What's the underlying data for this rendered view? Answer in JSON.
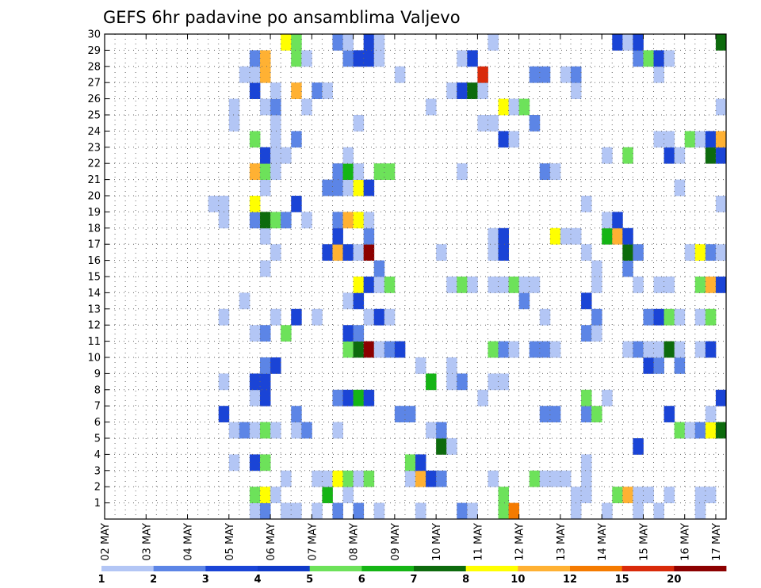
{
  "chart_data": {
    "type": "heatmap",
    "title": "GEFS 6hr padavine po ansamblima Valjevo",
    "xlabel": "",
    "ylabel": "",
    "x_range": [
      0,
      59
    ],
    "y_range": [
      0,
      30
    ],
    "grid": true,
    "x_ticks": [
      "02 MAY",
      "03 MAY",
      "04 MAY",
      "05 MAY",
      "06 MAY",
      "07 MAY",
      "08 MAY",
      "09 MAY",
      "10 MAY",
      "11 MAY",
      "12 MAY",
      "13 MAY",
      "14 MAY",
      "15 MAY",
      "16 MAY",
      "17 MAY"
    ],
    "x_tick_positions": [
      0,
      4,
      8,
      12,
      16,
      20,
      24,
      28,
      32,
      36,
      40,
      44,
      48,
      52,
      56,
      59
    ],
    "y_ticks": [
      "1",
      "2",
      "3",
      "4",
      "5",
      "6",
      "7",
      "8",
      "9",
      "10",
      "11",
      "12",
      "13",
      "14",
      "15",
      "16",
      "17",
      "18",
      "19",
      "20",
      "21",
      "22",
      "23",
      "24",
      "25",
      "26",
      "27",
      "28",
      "29",
      "30"
    ],
    "legend": {
      "position": "bottom",
      "labels": [
        "1",
        "2",
        "3",
        "4",
        "5",
        "6",
        "7",
        "8",
        "10",
        "12",
        "15",
        "20"
      ],
      "colors": [
        "#b3c6f5",
        "#5c85e6",
        "#1a44d6",
        "#0f3ac9",
        "#6de25a",
        "#15b515",
        "#0d6b0d",
        "#ffff00",
        "#ffb133",
        "#f57b00",
        "#d92a0a",
        "#8c0000"
      ]
    },
    "cells": [
      [
        14,
        0,
        1
      ],
      [
        15,
        0,
        1
      ],
      [
        15,
        0,
        2
      ],
      [
        17,
        0,
        1
      ],
      [
        17,
        0,
        1
      ],
      [
        18,
        0,
        1
      ],
      [
        20,
        0,
        1
      ],
      [
        22,
        0,
        2
      ],
      [
        24,
        0,
        2
      ],
      [
        26,
        0,
        1
      ],
      [
        30,
        0,
        1
      ],
      [
        34,
        0,
        2
      ],
      [
        35,
        0,
        1
      ],
      [
        38,
        0,
        5
      ],
      [
        39,
        0,
        12
      ],
      [
        45,
        0,
        1
      ],
      [
        48,
        0,
        1
      ],
      [
        51,
        0,
        1
      ],
      [
        53,
        0,
        1
      ],
      [
        57,
        0,
        1
      ],
      [
        14,
        1,
        5
      ],
      [
        15,
        1,
        8
      ],
      [
        16,
        1,
        1
      ],
      [
        21,
        1,
        6
      ],
      [
        23,
        1,
        1
      ],
      [
        38,
        1,
        5
      ],
      [
        45,
        1,
        1
      ],
      [
        46,
        1,
        1
      ],
      [
        49,
        1,
        5
      ],
      [
        50,
        1,
        10
      ],
      [
        51,
        1,
        1
      ],
      [
        52,
        1,
        1
      ],
      [
        54,
        1,
        1
      ],
      [
        57,
        1,
        1
      ],
      [
        58,
        1,
        1
      ],
      [
        17,
        2,
        1
      ],
      [
        20,
        2,
        1
      ],
      [
        21,
        2,
        1
      ],
      [
        22,
        2,
        8
      ],
      [
        23,
        2,
        5
      ],
      [
        24,
        2,
        1
      ],
      [
        25,
        2,
        5
      ],
      [
        29,
        2,
        1
      ],
      [
        30,
        2,
        10
      ],
      [
        31,
        2,
        3
      ],
      [
        32,
        2,
        2
      ],
      [
        37,
        2,
        1
      ],
      [
        41,
        2,
        5
      ],
      [
        42,
        2,
        1
      ],
      [
        43,
        2,
        1
      ],
      [
        44,
        2,
        1
      ],
      [
        46,
        2,
        1
      ],
      [
        12,
        3,
        1
      ],
      [
        14,
        3,
        3
      ],
      [
        15,
        3,
        5
      ],
      [
        29,
        3,
        5
      ],
      [
        30,
        3,
        3
      ],
      [
        46,
        3,
        1
      ],
      [
        32,
        4,
        7
      ],
      [
        33,
        4,
        1
      ],
      [
        51,
        4,
        3
      ],
      [
        12,
        5,
        1
      ],
      [
        13,
        5,
        2
      ],
      [
        14,
        5,
        1
      ],
      [
        15,
        5,
        5
      ],
      [
        16,
        5,
        1
      ],
      [
        18,
        5,
        1
      ],
      [
        19,
        5,
        2
      ],
      [
        22,
        5,
        1
      ],
      [
        31,
        5,
        1
      ],
      [
        32,
        5,
        2
      ],
      [
        55,
        5,
        5
      ],
      [
        56,
        5,
        1
      ],
      [
        57,
        5,
        2
      ],
      [
        58,
        5,
        8
      ],
      [
        59,
        5,
        7
      ],
      [
        11,
        6,
        3
      ],
      [
        18,
        6,
        2
      ],
      [
        28,
        6,
        2
      ],
      [
        29,
        6,
        2
      ],
      [
        42,
        6,
        2
      ],
      [
        43,
        6,
        2
      ],
      [
        46,
        6,
        2
      ],
      [
        47,
        6,
        5
      ],
      [
        54,
        6,
        3
      ],
      [
        58,
        6,
        1
      ],
      [
        14,
        7,
        1
      ],
      [
        15,
        7,
        3
      ],
      [
        22,
        7,
        2
      ],
      [
        23,
        7,
        3
      ],
      [
        24,
        7,
        6
      ],
      [
        25,
        7,
        3
      ],
      [
        36,
        7,
        1
      ],
      [
        46,
        7,
        5
      ],
      [
        48,
        7,
        1
      ],
      [
        59,
        7,
        3
      ],
      [
        11,
        8,
        1
      ],
      [
        14,
        8,
        3
      ],
      [
        15,
        8,
        3
      ],
      [
        31,
        8,
        6
      ],
      [
        33,
        8,
        1
      ],
      [
        34,
        8,
        2
      ],
      [
        37,
        8,
        1
      ],
      [
        38,
        8,
        1
      ],
      [
        15,
        9,
        2
      ],
      [
        16,
        9,
        3
      ],
      [
        30,
        9,
        1
      ],
      [
        33,
        9,
        1
      ],
      [
        52,
        9,
        3
      ],
      [
        53,
        9,
        2
      ],
      [
        55,
        9,
        2
      ],
      [
        23,
        10,
        5
      ],
      [
        24,
        10,
        7
      ],
      [
        25,
        10,
        20
      ],
      [
        26,
        10,
        1
      ],
      [
        27,
        10,
        2
      ],
      [
        28,
        10,
        3
      ],
      [
        37,
        10,
        5
      ],
      [
        38,
        10,
        2
      ],
      [
        39,
        10,
        1
      ],
      [
        41,
        10,
        2
      ],
      [
        42,
        10,
        2
      ],
      [
        43,
        10,
        1
      ],
      [
        50,
        10,
        1
      ],
      [
        51,
        10,
        2
      ],
      [
        52,
        10,
        1
      ],
      [
        53,
        10,
        1
      ],
      [
        54,
        10,
        7
      ],
      [
        55,
        10,
        1
      ],
      [
        57,
        10,
        1
      ],
      [
        58,
        10,
        3
      ],
      [
        14,
        11,
        1
      ],
      [
        15,
        11,
        2
      ],
      [
        17,
        11,
        5
      ],
      [
        23,
        11,
        3
      ],
      [
        24,
        11,
        2
      ],
      [
        46,
        11,
        2
      ],
      [
        47,
        11,
        1
      ],
      [
        11,
        12,
        1
      ],
      [
        16,
        12,
        1
      ],
      [
        18,
        12,
        3
      ],
      [
        20,
        12,
        1
      ],
      [
        25,
        12,
        1
      ],
      [
        26,
        12,
        3
      ],
      [
        27,
        12,
        1
      ],
      [
        42,
        12,
        1
      ],
      [
        47,
        12,
        2
      ],
      [
        52,
        12,
        2
      ],
      [
        53,
        12,
        3
      ],
      [
        54,
        12,
        5
      ],
      [
        55,
        12,
        1
      ],
      [
        57,
        12,
        1
      ],
      [
        58,
        12,
        5
      ],
      [
        13,
        13,
        1
      ],
      [
        23,
        13,
        1
      ],
      [
        24,
        13,
        3
      ],
      [
        40,
        13,
        2
      ],
      [
        46,
        13,
        3
      ],
      [
        24,
        14,
        8
      ],
      [
        25,
        14,
        3
      ],
      [
        26,
        14,
        1
      ],
      [
        27,
        14,
        5
      ],
      [
        33,
        14,
        1
      ],
      [
        34,
        14,
        5
      ],
      [
        35,
        14,
        1
      ],
      [
        37,
        14,
        1
      ],
      [
        38,
        14,
        1
      ],
      [
        39,
        14,
        5
      ],
      [
        40,
        14,
        1
      ],
      [
        41,
        14,
        1
      ],
      [
        47,
        14,
        1
      ],
      [
        51,
        14,
        1
      ],
      [
        53,
        14,
        1
      ],
      [
        54,
        14,
        1
      ],
      [
        57,
        14,
        5
      ],
      [
        58,
        14,
        10
      ],
      [
        59,
        14,
        3
      ],
      [
        15,
        15,
        1
      ],
      [
        26,
        15,
        2
      ],
      [
        47,
        15,
        1
      ],
      [
        50,
        15,
        2
      ],
      [
        16,
        16,
        1
      ],
      [
        21,
        16,
        3
      ],
      [
        22,
        16,
        10
      ],
      [
        23,
        16,
        3
      ],
      [
        24,
        16,
        1
      ],
      [
        25,
        16,
        20
      ],
      [
        32,
        16,
        1
      ],
      [
        37,
        16,
        1
      ],
      [
        38,
        16,
        3
      ],
      [
        46,
        16,
        1
      ],
      [
        50,
        16,
        7
      ],
      [
        51,
        16,
        2
      ],
      [
        56,
        16,
        1
      ],
      [
        57,
        16,
        8
      ],
      [
        58,
        16,
        2
      ],
      [
        59,
        16,
        1
      ],
      [
        15,
        17,
        1
      ],
      [
        22,
        17,
        3
      ],
      [
        25,
        17,
        2
      ],
      [
        37,
        17,
        1
      ],
      [
        38,
        17,
        3
      ],
      [
        43,
        17,
        8
      ],
      [
        44,
        17,
        1
      ],
      [
        45,
        17,
        1
      ],
      [
        48,
        17,
        6
      ],
      [
        49,
        17,
        10
      ],
      [
        50,
        17,
        3
      ],
      [
        11,
        18,
        1
      ],
      [
        14,
        18,
        2
      ],
      [
        15,
        18,
        7
      ],
      [
        16,
        18,
        5
      ],
      [
        17,
        18,
        2
      ],
      [
        19,
        18,
        1
      ],
      [
        22,
        18,
        2
      ],
      [
        23,
        18,
        10
      ],
      [
        24,
        18,
        8
      ],
      [
        25,
        18,
        1
      ],
      [
        48,
        18,
        1
      ],
      [
        49,
        18,
        3
      ],
      [
        10,
        19,
        1
      ],
      [
        11,
        19,
        1
      ],
      [
        14,
        19,
        8
      ],
      [
        18,
        19,
        3
      ],
      [
        46,
        19,
        1
      ],
      [
        59,
        19,
        1
      ],
      [
        15,
        20,
        1
      ],
      [
        21,
        20,
        2
      ],
      [
        22,
        20,
        2
      ],
      [
        23,
        20,
        1
      ],
      [
        24,
        20,
        8
      ],
      [
        25,
        20,
        3
      ],
      [
        55,
        20,
        1
      ],
      [
        14,
        21,
        10
      ],
      [
        15,
        21,
        5
      ],
      [
        16,
        21,
        1
      ],
      [
        22,
        21,
        2
      ],
      [
        23,
        21,
        6
      ],
      [
        24,
        21,
        1
      ],
      [
        26,
        21,
        5
      ],
      [
        27,
        21,
        5
      ],
      [
        34,
        21,
        1
      ],
      [
        42,
        21,
        2
      ],
      [
        43,
        21,
        1
      ],
      [
        15,
        22,
        3
      ],
      [
        16,
        22,
        1
      ],
      [
        17,
        22,
        1
      ],
      [
        23,
        22,
        1
      ],
      [
        48,
        22,
        1
      ],
      [
        50,
        22,
        5
      ],
      [
        54,
        22,
        3
      ],
      [
        55,
        22,
        1
      ],
      [
        58,
        22,
        7
      ],
      [
        59,
        22,
        3
      ],
      [
        14,
        23,
        5
      ],
      [
        16,
        23,
        1
      ],
      [
        18,
        23,
        2
      ],
      [
        38,
        23,
        3
      ],
      [
        39,
        23,
        1
      ],
      [
        53,
        23,
        1
      ],
      [
        54,
        23,
        1
      ],
      [
        56,
        23,
        5
      ],
      [
        57,
        23,
        1
      ],
      [
        58,
        23,
        3
      ],
      [
        59,
        23,
        10
      ],
      [
        12,
        24,
        1
      ],
      [
        16,
        24,
        1
      ],
      [
        24,
        24,
        1
      ],
      [
        36,
        24,
        1
      ],
      [
        37,
        24,
        1
      ],
      [
        41,
        24,
        2
      ],
      [
        12,
        25,
        1
      ],
      [
        15,
        25,
        1
      ],
      [
        16,
        25,
        2
      ],
      [
        19,
        25,
        1
      ],
      [
        31,
        25,
        1
      ],
      [
        38,
        25,
        8
      ],
      [
        39,
        25,
        1
      ],
      [
        40,
        25,
        5
      ],
      [
        59,
        25,
        1
      ],
      [
        14,
        26,
        3
      ],
      [
        16,
        26,
        1
      ],
      [
        18,
        26,
        10
      ],
      [
        20,
        26,
        2
      ],
      [
        21,
        26,
        1
      ],
      [
        33,
        26,
        1
      ],
      [
        34,
        26,
        3
      ],
      [
        35,
        26,
        7
      ],
      [
        36,
        26,
        1
      ],
      [
        45,
        26,
        1
      ],
      [
        13,
        27,
        1
      ],
      [
        14,
        27,
        1
      ],
      [
        15,
        27,
        10
      ],
      [
        28,
        27,
        1
      ],
      [
        36,
        27,
        15
      ],
      [
        41,
        27,
        2
      ],
      [
        42,
        27,
        2
      ],
      [
        44,
        27,
        1
      ],
      [
        45,
        27,
        2
      ],
      [
        53,
        27,
        1
      ],
      [
        14,
        28,
        2
      ],
      [
        15,
        28,
        10
      ],
      [
        18,
        28,
        5
      ],
      [
        19,
        28,
        1
      ],
      [
        23,
        28,
        2
      ],
      [
        24,
        28,
        3
      ],
      [
        25,
        28,
        3
      ],
      [
        26,
        28,
        1
      ],
      [
        34,
        28,
        1
      ],
      [
        35,
        28,
        3
      ],
      [
        51,
        28,
        2
      ],
      [
        52,
        28,
        5
      ],
      [
        53,
        28,
        3
      ],
      [
        54,
        28,
        1
      ],
      [
        17,
        29,
        8
      ],
      [
        18,
        29,
        5
      ],
      [
        22,
        29,
        2
      ],
      [
        23,
        29,
        1
      ],
      [
        25,
        29,
        3
      ],
      [
        26,
        29,
        1
      ],
      [
        37,
        29,
        1
      ],
      [
        49,
        29,
        3
      ],
      [
        50,
        29,
        1
      ],
      [
        51,
        29,
        3
      ],
      [
        59,
        29,
        7
      ]
    ]
  }
}
